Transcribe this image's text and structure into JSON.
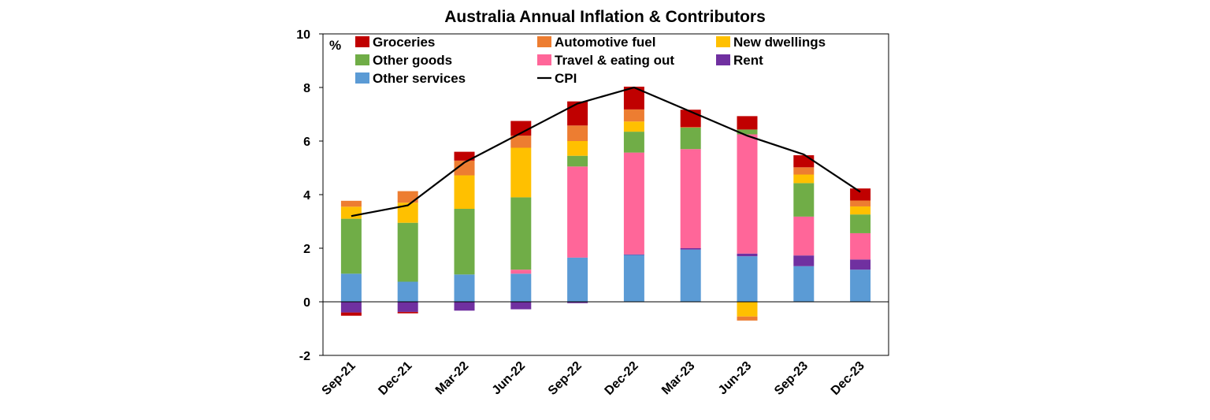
{
  "chart_data": {
    "type": "bar",
    "stacked": true,
    "title": "Australia Annual Inflation & Contributors",
    "ylabel": "%",
    "xlabel": "",
    "ylim": [
      -2,
      10
    ],
    "yticks": [
      -2,
      0,
      2,
      4,
      6,
      8,
      10
    ],
    "categories": [
      "Sep-21",
      "Dec-21",
      "Mar-22",
      "Jun-22",
      "Sep-22",
      "Dec-22",
      "Mar-23",
      "Jun-23",
      "Sep-23",
      "Dec-23"
    ],
    "series": [
      {
        "name": "Other services",
        "color": "#5B9BD5",
        "values": [
          1.05,
          0.75,
          1.02,
          1.05,
          1.65,
          1.75,
          1.95,
          1.7,
          1.33,
          1.2
        ]
      },
      {
        "name": "Rent",
        "color": "#7030A0",
        "values": [
          -0.4,
          -0.38,
          -0.33,
          -0.28,
          -0.05,
          0.02,
          0.05,
          0.1,
          0.4,
          0.38
        ]
      },
      {
        "name": "Travel & eating out",
        "color": "#FF6699",
        "values": [
          0.0,
          0.0,
          0.0,
          0.15,
          3.4,
          3.8,
          3.7,
          4.45,
          1.45,
          0.98
        ]
      },
      {
        "name": "Other goods",
        "color": "#70AD47",
        "values": [
          2.05,
          2.2,
          2.45,
          2.7,
          0.4,
          0.78,
          0.8,
          0.18,
          1.25,
          0.7
        ]
      },
      {
        "name": "New dwellings",
        "color": "#FFC000",
        "values": [
          0.45,
          0.75,
          1.25,
          1.85,
          0.55,
          0.38,
          0.0,
          -0.55,
          0.32,
          0.3
        ]
      },
      {
        "name": "Automotive fuel",
        "color": "#ED7D31",
        "values": [
          0.22,
          0.43,
          0.55,
          0.45,
          0.58,
          0.45,
          0.02,
          -0.15,
          0.27,
          0.22
        ]
      },
      {
        "name": "Groceries",
        "color": "#C00000",
        "values": [
          -0.12,
          -0.05,
          0.33,
          0.55,
          0.9,
          0.85,
          0.65,
          0.5,
          0.45,
          0.45
        ]
      }
    ],
    "line": {
      "name": "CPI",
      "color": "#000000",
      "values": [
        3.2,
        3.6,
        5.2,
        6.3,
        7.4,
        8.0,
        7.1,
        6.2,
        5.5,
        4.1
      ]
    },
    "legend": {
      "placement": "top-left inside plot",
      "order": [
        "Groceries",
        "Automotive fuel",
        "New dwellings",
        "Other goods",
        "Travel & eating out",
        "Rent",
        "Other services",
        "CPI"
      ]
    }
  }
}
